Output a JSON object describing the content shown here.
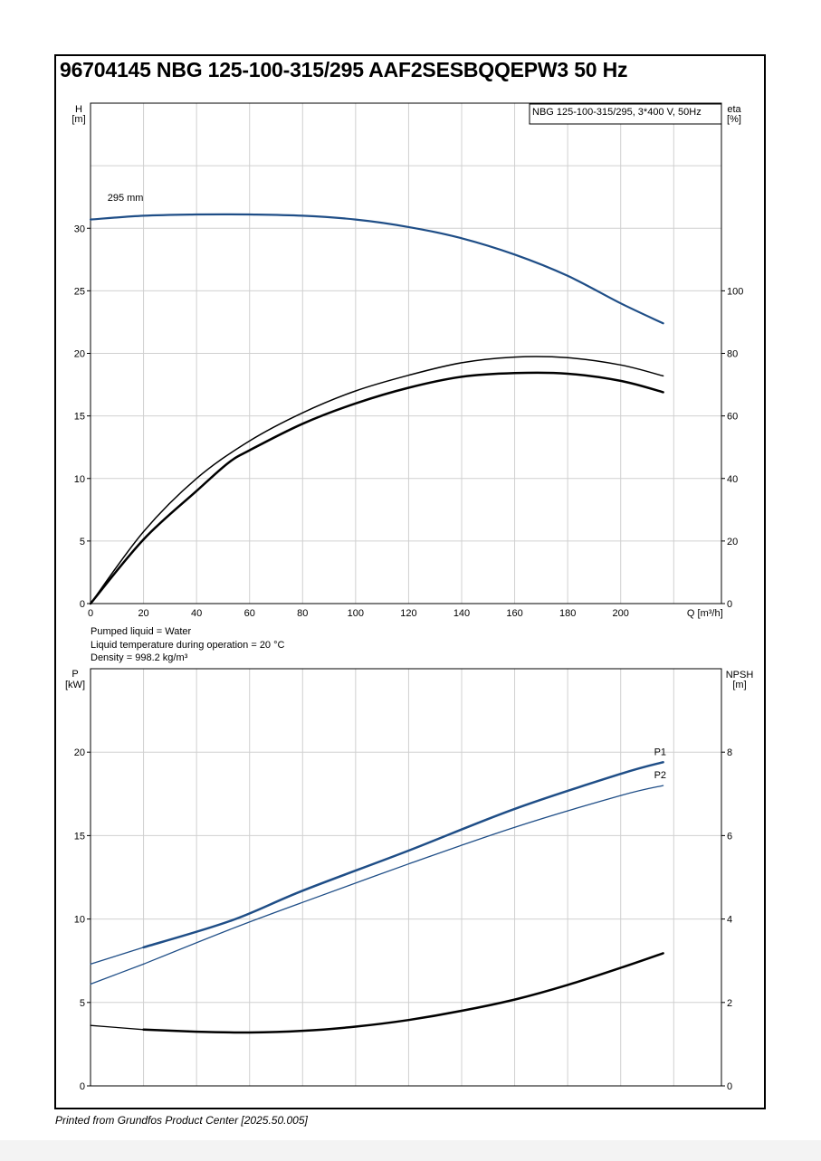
{
  "title": "96704145 NBG 125-100-315/295 AAF2SESBQQEPW3 50 Hz",
  "footer": "Printed from Grundfos Product Center [2025.50.005]",
  "liquid_info": {
    "line1": "Pumped liquid = Water",
    "line2": "Liquid temperature during operation = 20 °C",
    "line3": "Density = 998.2 kg/m³"
  },
  "colors": {
    "blue": "#1f4e87",
    "black": "#000000",
    "grid": "#d0d0d0"
  },
  "chart_data": [
    {
      "type": "line",
      "name": "head_efficiency",
      "legend_box": "NBG 125-100-315/295, 3*400 V, 50Hz",
      "left_axis": {
        "label_line1": "H",
        "label_line2": "[m]",
        "range": [
          0,
          40
        ],
        "ticks": [
          0,
          5,
          10,
          15,
          20,
          25,
          30
        ]
      },
      "right_axis": {
        "label_line1": "eta",
        "label_line2": "[%]",
        "range": [
          0,
          160
        ],
        "ticks": [
          0,
          20,
          40,
          60,
          80,
          100
        ]
      },
      "x_axis": {
        "label": "Q [m³/h]",
        "range": [
          0,
          238
        ],
        "ticks": [
          0,
          20,
          40,
          60,
          80,
          100,
          120,
          140,
          160,
          180,
          200
        ]
      },
      "grid": true,
      "annotations": [
        {
          "text": "295 mm",
          "x": 4,
          "y": 32.4
        }
      ],
      "series": [
        {
          "axis": "left",
          "color": "#1f4e87",
          "width": 2.2,
          "dash": false,
          "x": [
            0,
            20,
            40,
            60,
            80,
            100,
            120,
            140,
            160,
            180,
            200,
            216
          ],
          "y": [
            30.7,
            31.0,
            31.1,
            31.1,
            31.0,
            30.7,
            30.1,
            29.2,
            27.9,
            26.2,
            24.0,
            22.4
          ]
        },
        {
          "axis": "right",
          "color": "#000000",
          "width": 1.5,
          "dash": false,
          "x": [
            0,
            20,
            40,
            60,
            80,
            100,
            120,
            140,
            160,
            180,
            200,
            216
          ],
          "y": [
            0,
            23,
            40,
            52,
            61,
            68,
            73,
            77,
            78.8,
            78.6,
            76.3,
            72.8
          ]
        },
        {
          "axis": "right",
          "color": "#000000",
          "width": 2.5,
          "dash": false,
          "x": [
            0,
            20,
            40,
            52,
            60,
            80,
            100,
            120,
            140,
            160,
            180,
            200,
            216
          ],
          "y": [
            0,
            20.5,
            36,
            45,
            49,
            57.5,
            64,
            69,
            72.5,
            73.7,
            73.5,
            71.2,
            67.6
          ]
        }
      ]
    },
    {
      "type": "line",
      "name": "power_npsh",
      "left_axis": {
        "label_line1": "P",
        "label_line2": "[kW]",
        "range": [
          0,
          25
        ],
        "ticks": [
          0,
          5,
          10,
          15,
          20
        ]
      },
      "right_axis": {
        "label_line1": "NPSH",
        "label_line2": "[m]",
        "range": [
          0,
          10
        ],
        "ticks": [
          0,
          2,
          4,
          6,
          8
        ]
      },
      "x_axis": {
        "range": [
          0,
          238
        ],
        "ticks": [
          0,
          20,
          40,
          60,
          80,
          100,
          120,
          140,
          160,
          180,
          200
        ]
      },
      "grid": true,
      "series": [
        {
          "name": "P1",
          "axis": "left",
          "color": "#1f4e87",
          "width": 2.5,
          "dash": false,
          "x": [
            20,
            53,
            80,
            120,
            160,
            200,
            216
          ],
          "y": [
            8.3,
            9.9,
            11.7,
            14.1,
            16.6,
            18.7,
            19.4
          ]
        },
        {
          "name": "P2",
          "axis": "left",
          "color": "#1f4e87",
          "width": 1.3,
          "dash": false,
          "x": [
            20,
            53,
            80,
            120,
            160,
            200,
            216
          ],
          "y": [
            7.3,
            9.4,
            11.0,
            13.3,
            15.5,
            17.4,
            18.0
          ]
        },
        {
          "axis": "left",
          "color": "#1f4e87",
          "width": 1.3,
          "dash": false,
          "x": [
            0,
            20
          ],
          "y": [
            7.3,
            8.3
          ]
        },
        {
          "axis": "left",
          "color": "#1f4e87",
          "width": 1.3,
          "dash": false,
          "x": [
            0,
            20
          ],
          "y": [
            6.1,
            7.3
          ]
        },
        {
          "axis": "right",
          "color": "#000000",
          "width": 1.3,
          "dash": false,
          "x": [
            0,
            20
          ],
          "y": [
            1.45,
            1.35
          ]
        },
        {
          "axis": "right",
          "color": "#000000",
          "width": 2.5,
          "dash": false,
          "x": [
            20,
            40,
            60,
            80,
            100,
            120,
            140,
            160,
            180,
            200,
            216
          ],
          "y": [
            1.35,
            1.3,
            1.28,
            1.32,
            1.42,
            1.58,
            1.8,
            2.07,
            2.42,
            2.83,
            3.18
          ]
        }
      ]
    }
  ]
}
